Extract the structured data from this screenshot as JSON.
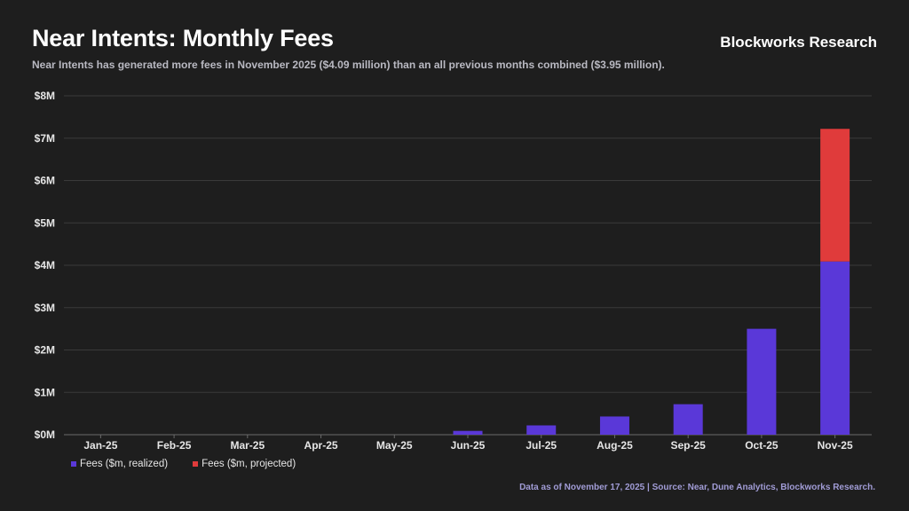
{
  "header": {
    "title": "Near Intents: Monthly Fees",
    "subtitle": "Near Intents has generated more fees in November 2025 ($4.09 million) than an all previous months combined ($3.95 million).",
    "brand": "Blockworks Research"
  },
  "footer": {
    "source": "Data as of November 17, 2025 | Source: Near, Dune Analytics, Blockworks Research."
  },
  "colors": {
    "background": "#1e1e1e",
    "realized": "#5a38d8",
    "projected": "#e03b3b",
    "gridline": "#3a3a3a"
  },
  "chart_data": {
    "type": "bar",
    "stacked": true,
    "categories": [
      "Jan-25",
      "Feb-25",
      "Mar-25",
      "Apr-25",
      "May-25",
      "Jun-25",
      "Jul-25",
      "Aug-25",
      "Sep-25",
      "Oct-25",
      "Nov-25"
    ],
    "series": [
      {
        "name": "Fees ($m, realized)",
        "values": [
          0,
          0,
          0,
          0,
          0,
          0.09,
          0.22,
          0.43,
          0.72,
          2.5,
          4.09
        ]
      },
      {
        "name": "Fees ($m, projected)",
        "values": [
          0,
          0,
          0,
          0,
          0,
          0,
          0,
          0,
          0,
          0,
          3.13
        ]
      }
    ],
    "ylim": [
      0,
      8
    ],
    "yticks": [
      0,
      1,
      2,
      3,
      4,
      5,
      6,
      7,
      8
    ],
    "ytick_labels": [
      "$0M",
      "$1M",
      "$2M",
      "$3M",
      "$4M",
      "$5M",
      "$6M",
      "$7M",
      "$8M"
    ],
    "xlabel": "",
    "ylabel": "",
    "grid": true,
    "legend": "bottom-left"
  }
}
